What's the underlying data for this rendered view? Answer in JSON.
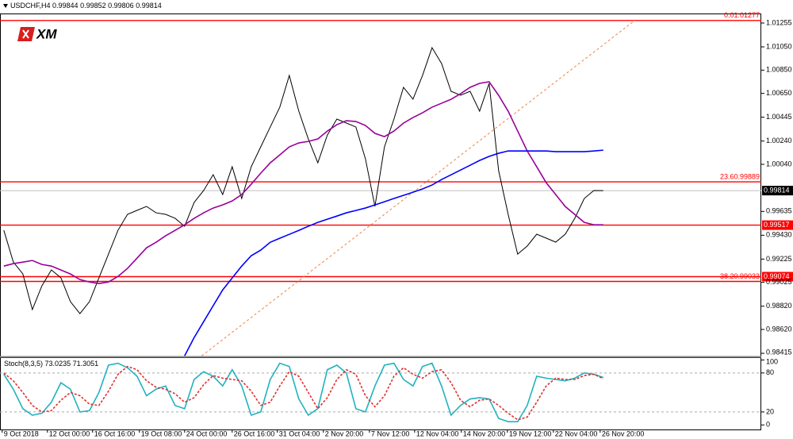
{
  "chart_data": [
    {
      "type": "line",
      "title": "USDCHF,H4",
      "header_values": [
        0.99844,
        0.99852,
        0.99806,
        0.99814
      ],
      "logo": "XM",
      "x": [
        0,
        1,
        2,
        3,
        4,
        5,
        6,
        7,
        8,
        9,
        10,
        11,
        12,
        13,
        14,
        15,
        16,
        17,
        18,
        19,
        20,
        21,
        22,
        23,
        24,
        25,
        26,
        27,
        28,
        29,
        30,
        31,
        32,
        33,
        34,
        35,
        36,
        37,
        38,
        39,
        40,
        41,
        42,
        43,
        44,
        45,
        46,
        47,
        48,
        49,
        50,
        51,
        52,
        53,
        54,
        55,
        56,
        57,
        58,
        59,
        60,
        61,
        62,
        63
      ],
      "xlim": [
        -0.4,
        79.6
      ],
      "xticks": [
        {
          "value": -0.17,
          "label": "9 Oct 2018"
        },
        {
          "value": 4.58,
          "label": "12 Oct 00:00"
        },
        {
          "value": 9.33,
          "label": "16 Oct 16:00"
        },
        {
          "value": 14.25,
          "label": "19 Oct 08:00"
        },
        {
          "value": 19,
          "label": "24 Oct 00:00"
        },
        {
          "value": 24,
          "label": "26 Oct 16:00"
        },
        {
          "value": 28.75,
          "label": "31 Oct 04:00"
        },
        {
          "value": 33.58,
          "label": "2 Nov 20:00"
        },
        {
          "value": 38.42,
          "label": "7 Nov 12:00"
        },
        {
          "value": 43.17,
          "label": "12 Nov 04:00"
        },
        {
          "value": 48.08,
          "label": "14 Nov 20:00"
        },
        {
          "value": 52.92,
          "label": "19 Nov 12:00"
        },
        {
          "value": 57.75,
          "label": "22 Nov 04:00"
        },
        {
          "value": 62.67,
          "label": "26 Nov 20:00"
        }
      ],
      "ylim": [
        0.98388,
        1.0133
      ],
      "yticks": [
        1.01255,
        {
          "value": 1.0105,
          "label": "1.01050"
        },
        {
          "value": 1.0085,
          "label": "1.00850"
        },
        {
          "value": 1.0065,
          "label": "1.00650"
        },
        1.00445,
        {
          "value": 1.0024,
          "label": "1.00240"
        },
        {
          "value": 1.0004,
          "label": "1.00040"
        },
        0.99635,
        {
          "value": 0.9943,
          "label": "0.99430"
        },
        0.99225,
        0.99025,
        {
          "value": 0.9882,
          "label": "0.98820"
        },
        {
          "value": 0.9862,
          "label": "0.98620"
        },
        0.98415
      ],
      "series": [
        {
          "color": "#000000",
          "values": [
            0.99473,
            0.992,
            0.99098,
            0.98791,
            0.98995,
            0.99132,
            0.99064,
            0.98859,
            0.98756,
            0.98859,
            0.99064,
            0.99268,
            0.99473,
            0.9961,
            0.99644,
            0.99678,
            0.99623,
            0.9961,
            0.99576,
            0.99507,
            0.99712,
            0.99815,
            0.99951,
            0.9978,
            1.00019,
            0.99746,
            1.00019,
            1.0019,
            1.00361,
            1.00531,
            1.00804,
            1.00497,
            1.00258,
            1.00053,
            1.00292,
            1.00429,
            1.00395,
            1.00361,
            1.00088,
            0.99678,
            1.0019,
            1.00429,
            1.00702,
            1.006,
            1.00804,
            1.01043,
            1.00907,
            1.00668,
            1.00634,
            1.00668,
            1.00497,
            1.00736,
            0.99985,
            0.9961,
            0.99268,
            0.99337,
            0.99439,
            0.99405,
            0.99371,
            0.99439,
            0.99576,
            0.99746,
            0.99815,
            0.99814
          ]
        },
        {
          "color": "#990099",
          "values": [
            0.99165,
            0.99186,
            0.99199,
            0.99213,
            0.99179,
            0.99165,
            0.99131,
            0.99097,
            0.99049,
            0.99028,
            0.99015,
            0.99028,
            0.99076,
            0.99145,
            0.99233,
            0.99322,
            0.9937,
            0.99425,
            0.99472,
            0.9952,
            0.99575,
            0.99623,
            0.99664,
            0.99691,
            0.99725,
            0.9978,
            0.99869,
            0.99964,
            1.00053,
            1.00121,
            1.0019,
            1.00224,
            1.00237,
            1.00258,
            1.00326,
            1.00381,
            1.00415,
            1.00408,
            1.00374,
            1.00306,
            1.00278,
            1.00326,
            1.00394,
            1.00442,
            1.00483,
            1.00531,
            1.00565,
            1.00599,
            1.00647,
            1.00702,
            1.00736,
            1.0075,
            1.00633,
            1.00497,
            1.00326,
            1.00155,
            1.00019,
            0.99882,
            0.9978,
            0.99677,
            0.99609,
            0.99541,
            0.9952,
            0.9952
          ]
        },
        {
          "color": "#0000ff",
          "values": [
            null,
            null,
            null,
            null,
            null,
            null,
            null,
            null,
            null,
            null,
            null,
            null,
            null,
            null,
            null,
            null,
            null,
            null,
            null,
            0.98393,
            0.9855,
            0.98687,
            0.98824,
            0.9896,
            0.99063,
            0.99165,
            0.99254,
            0.99302,
            0.9937,
            0.99404,
            0.99438,
            0.99472,
            0.99507,
            0.99541,
            0.99568,
            0.99595,
            0.99623,
            0.99643,
            0.99664,
            0.99691,
            0.99718,
            0.99746,
            0.99773,
            0.998,
            0.99828,
            0.99862,
            0.99909,
            0.9995,
            0.99991,
            1.00032,
            1.00073,
            1.00108,
            1.00135,
            1.00155,
            1.00155,
            1.00155,
            1.00155,
            1.00155,
            1.00149,
            1.00149,
            1.00149,
            1.00149,
            1.00155,
            1.00162
          ]
        }
      ],
      "levels": [
        {
          "value": 1.01277,
          "label": "0.01.01277"
        },
        {
          "value": 0.99889,
          "label": "23.60.99889"
        },
        {
          "value": 0.99517,
          "box": true
        },
        {
          "value": 0.99074,
          "box": true
        },
        {
          "value": 0.99033,
          "label": "38.20.99033"
        }
      ],
      "level_color": "#ff0000",
      "last_price": 0.99814,
      "trend_line": {
        "x": [
          20.8,
          66.3
        ],
        "y": [
          0.98393,
          1.01277
        ],
        "color": "#f08040"
      }
    },
    {
      "type": "line",
      "title": "Stoch(8,3,5)",
      "ylim": [
        -7,
        103
      ],
      "yticks": [
        0,
        20,
        80,
        100
      ],
      "levels": [
        20,
        80
      ],
      "series": [
        {
          "color": "#20b2c0",
          "values": [
            78,
            55,
            25,
            15,
            18,
            35,
            65,
            55,
            20,
            22,
            50,
            92,
            95,
            88,
            75,
            45,
            55,
            60,
            30,
            25,
            70,
            82,
            75,
            60,
            85,
            60,
            15,
            20,
            70,
            95,
            90,
            40,
            15,
            25,
            85,
            92,
            80,
            25,
            20,
            60,
            92,
            95,
            70,
            60,
            90,
            95,
            60,
            15,
            30,
            40,
            42,
            40,
            10,
            5,
            5,
            30,
            75,
            72,
            70,
            68,
            72,
            80,
            78,
            73.0235
          ]
        },
        {
          "color": "#e03030",
          "dashed": true,
          "values": [
            80,
            68,
            50,
            30,
            20,
            22,
            38,
            50,
            45,
            32,
            30,
            52,
            78,
            90,
            85,
            68,
            58,
            55,
            48,
            35,
            42,
            62,
            76,
            72,
            70,
            68,
            52,
            30,
            35,
            60,
            82,
            75,
            50,
            25,
            42,
            70,
            85,
            78,
            45,
            28,
            45,
            75,
            88,
            78,
            72,
            82,
            85,
            65,
            38,
            28,
            38,
            40,
            30,
            18,
            8,
            12,
            35,
            60,
            72,
            70,
            70,
            76,
            78,
            71.3051
          ]
        }
      ]
    }
  ]
}
